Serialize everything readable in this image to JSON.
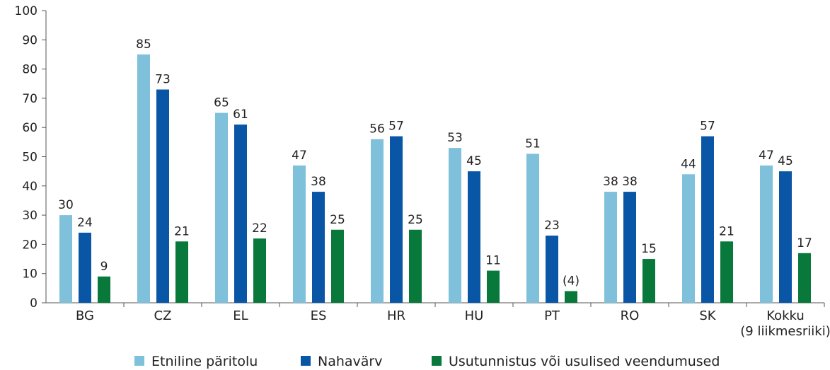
{
  "chart_data": {
    "type": "bar",
    "categories": [
      "BG",
      "CZ",
      "EL",
      "ES",
      "HR",
      "HU",
      "PT",
      "RO",
      "SK",
      "Kokku\n(9 liikmesriiki)"
    ],
    "series": [
      {
        "name": "Etniline päritolu",
        "color": "#7fc0da",
        "values": [
          30,
          85,
          65,
          47,
          56,
          53,
          51,
          38,
          44,
          47
        ]
      },
      {
        "name": "Nahavärv",
        "color": "#0a56a6",
        "values": [
          24,
          73,
          61,
          38,
          57,
          45,
          23,
          38,
          57,
          45
        ]
      },
      {
        "name": "Usutunnistus või usulised veendumused",
        "color": "#08793b",
        "values": [
          9,
          21,
          22,
          25,
          25,
          11,
          4,
          15,
          21,
          17
        ],
        "value_labels": [
          "9",
          "21",
          "22",
          "25",
          "25",
          "11",
          "(4)",
          "15",
          "21",
          "17"
        ]
      }
    ],
    "ylim": [
      0,
      100
    ],
    "yticks": [
      0,
      10,
      20,
      30,
      40,
      50,
      60,
      70,
      80,
      90,
      100
    ],
    "legend": "bottom"
  }
}
